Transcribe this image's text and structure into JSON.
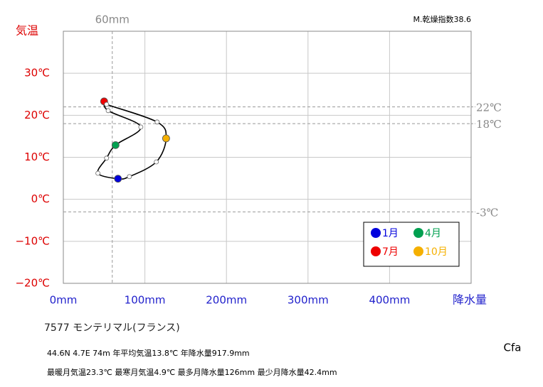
{
  "chart_data": {
    "type": "climograph",
    "x_label": "降水量",
    "y_label": "気温",
    "x": [
      67,
      42.4,
      53,
      64,
      95,
      55,
      50,
      53,
      115,
      126,
      114,
      81
    ],
    "values": [
      4.9,
      6.2,
      9.8,
      12.9,
      17.2,
      21.1,
      23.3,
      22.6,
      18.4,
      14.5,
      8.9,
      5.4
    ],
    "point_colors": [
      "#0000dd",
      null,
      null,
      "#00a050",
      null,
      null,
      "#ee0000",
      null,
      null,
      "#f5b000",
      null,
      null
    ],
    "legend": [
      {
        "name": "1月",
        "color": "#0000dd"
      },
      {
        "name": "4月",
        "color": "#00a050"
      },
      {
        "name": "7月",
        "color": "#ee0000"
      },
      {
        "name": "10月",
        "color": "#f5b000"
      }
    ],
    "xlim": [
      0,
      500
    ],
    "ylim": [
      -20,
      40
    ],
    "xticks": [
      {
        "value": 0,
        "label": "0mm"
      },
      {
        "value": 100,
        "label": "100mm"
      },
      {
        "value": 200,
        "label": "200mm"
      },
      {
        "value": 300,
        "label": "300mm"
      },
      {
        "value": 400,
        "label": "400mm"
      }
    ],
    "yticks": [
      {
        "value": -20,
        "label": "−20℃"
      },
      {
        "value": -10,
        "label": "−10℃"
      },
      {
        "value": 0,
        "label": "0℃"
      },
      {
        "value": 10,
        "label": "10℃"
      },
      {
        "value": 20,
        "label": "20℃"
      },
      {
        "value": 30,
        "label": "30℃"
      }
    ],
    "x_ref": [
      {
        "value": 60,
        "label": "60mm"
      }
    ],
    "y_ref": [
      {
        "value": 22,
        "label": "22℃"
      },
      {
        "value": 18,
        "label": "18℃"
      },
      {
        "value": -3,
        "label": "-3℃"
      }
    ],
    "grid": true,
    "info": {
      "index": "M.乾燥指数38.6",
      "station": "7577  モンテリマル(フランス)",
      "line1": "44.6N  4.7E 74m  年平均気温13.8℃ 年降水量917.9mm",
      "line2": "最暖月気温23.3℃ 最寒月気温4.9℃ 最多月降水量126mm 最少月降水量42.4mm",
      "climate": "Cfa"
    }
  }
}
